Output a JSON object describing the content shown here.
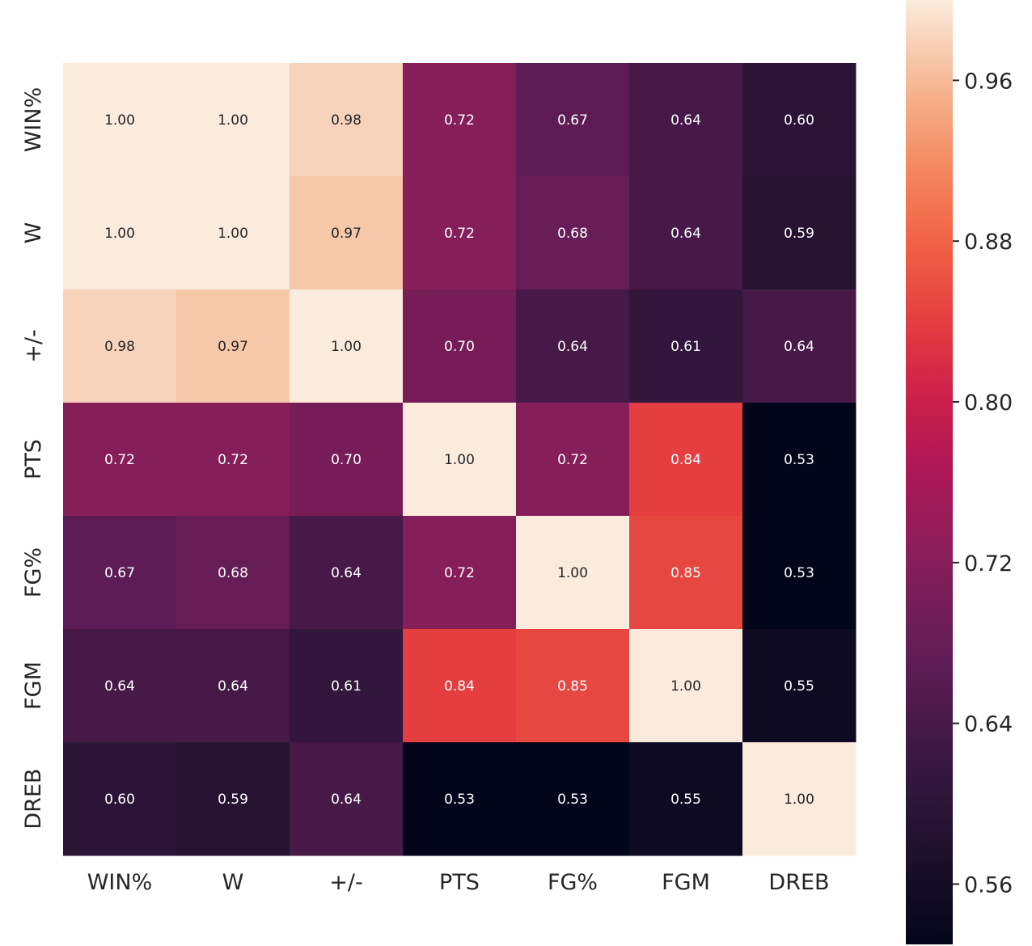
{
  "chart_data": {
    "type": "heatmap",
    "title": "",
    "xlabel": "",
    "ylabel": "",
    "categories": [
      "WIN%",
      "W",
      "+/-",
      "PTS",
      "FG%",
      "FGM",
      "DREB"
    ],
    "row_labels": [
      "WIN%",
      "W",
      "+/-",
      "PTS",
      "FG%",
      "FGM",
      "DREB"
    ],
    "values": [
      [
        1.0,
        1.0,
        0.98,
        0.72,
        0.67,
        0.64,
        0.6
      ],
      [
        1.0,
        1.0,
        0.97,
        0.72,
        0.68,
        0.64,
        0.59
      ],
      [
        0.98,
        0.97,
        1.0,
        0.7,
        0.64,
        0.61,
        0.64
      ],
      [
        0.72,
        0.72,
        0.7,
        1.0,
        0.72,
        0.84,
        0.53
      ],
      [
        0.67,
        0.68,
        0.64,
        0.72,
        1.0,
        0.85,
        0.53
      ],
      [
        0.64,
        0.64,
        0.61,
        0.84,
        0.85,
        1.0,
        0.55
      ],
      [
        0.6,
        0.59,
        0.64,
        0.53,
        0.53,
        0.55,
        1.0
      ]
    ],
    "annotation_format": "0.00",
    "colormap": "rocket",
    "color_range": [
      0.53,
      1.0
    ],
    "colorbar": {
      "ticks": [
        0.56,
        0.64,
        0.72,
        0.8,
        0.88,
        0.96
      ],
      "tick_labels": [
        "0.56",
        "0.64",
        "0.72",
        "0.80",
        "0.88",
        "0.96"
      ],
      "placement": "right"
    }
  }
}
